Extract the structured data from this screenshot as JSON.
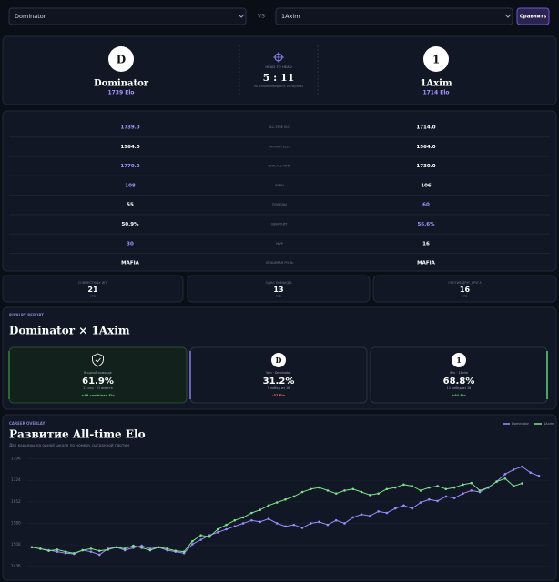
{
  "topbar": {
    "player1": "Dominator",
    "vs": "VS",
    "player2": "1Axim",
    "button": "Сравнить"
  },
  "h2h": {
    "left": {
      "avatar": "D",
      "name": "Dominator",
      "elo": "1739 Elo"
    },
    "right": {
      "avatar": "1",
      "name": "1Axim",
      "elo": "1714 Elo"
    },
    "label": "HEAD TO HEAD",
    "score": "5 : 11",
    "caption": "По очным победам в 16 партиях"
  },
  "stats": [
    {
      "left": "1739.0",
      "label": "ALL-TIME ELO",
      "right": "1714.0",
      "winner": "left"
    },
    {
      "left": "1564.0",
      "label": "MONTH ELO",
      "right": "1564.0",
      "winner": "none"
    },
    {
      "left": "1770.0",
      "label": "ПИК ALL-TIME",
      "right": "1730.0",
      "winner": "left"
    },
    {
      "left": "108",
      "label": "ИГРЫ",
      "right": "106",
      "winner": "left"
    },
    {
      "left": "55",
      "label": "ПОБЕДЫ",
      "right": "60",
      "winner": "right"
    },
    {
      "left": "50.9%",
      "label": "ВИНРЕЙТ",
      "right": "56.6%",
      "winner": "right"
    },
    {
      "left": "30",
      "label": "MVP",
      "right": "16",
      "winner": "left"
    },
    {
      "left": "MAFIA",
      "label": "ЛЮБИМАЯ РОЛЬ",
      "right": "MAFIA",
      "winner": "none"
    }
  ],
  "summary": [
    {
      "label": "СОВМЕСТНЫХ ИГР",
      "value": "21",
      "unit": "игр"
    },
    {
      "label": "ОДНА КОМАНДА",
      "value": "13",
      "unit": "игр"
    },
    {
      "label": "ПРОТИВ ДРУГ ДРУГА",
      "value": "16",
      "unit": "игр"
    }
  ],
  "rivalry": {
    "eyebrow": "RIVALRY REPORT",
    "title": "Dominator × 1Axim",
    "cards": [
      {
        "label": "В одной команде",
        "value": "61.9%",
        "sub": "13 игр · 21 вместе",
        "delta": "+46 combined Elo",
        "tone": "positive",
        "accent": "#3b7a4a"
      },
      {
        "avatar": "D",
        "label": "Win · Dominator",
        "value": "31.2%",
        "sub": "5 побед из 16",
        "delta": "-37 Elo",
        "tone": "negative",
        "accent": "#8b7cf0"
      },
      {
        "avatar": "1",
        "label": "Win · 1Axim",
        "value": "68.8%",
        "sub": "11 побед из 16",
        "delta": "+64 Elo",
        "tone": "positive",
        "accent": "#5fd37a"
      }
    ]
  },
  "chart_data": {
    "type": "line",
    "eyebrow": "CAREER OVERLAY",
    "title": "Развитие All-time Elo",
    "subtitle": "Две карьеры на одной шкале по номеру сыгранной партии",
    "legend": "top-right",
    "grid": true,
    "ylim": [
      1420,
      1810
    ],
    "yticks": [
      1796,
      1724,
      1652,
      1580,
      1508,
      1436
    ],
    "series": [
      {
        "name": "Dominator",
        "color": "#9d8cff",
        "values": [
          1500,
          1495,
          1490,
          1485,
          1480,
          1478,
          1490,
          1485,
          1475,
          1495,
          1500,
          1490,
          1498,
          1505,
          1495,
          1500,
          1490,
          1485,
          1480,
          1510,
          1525,
          1540,
          1550,
          1560,
          1570,
          1580,
          1590,
          1585,
          1595,
          1580,
          1570,
          1575,
          1565,
          1580,
          1585,
          1575,
          1590,
          1580,
          1600,
          1610,
          1605,
          1620,
          1615,
          1630,
          1640,
          1630,
          1650,
          1660,
          1655,
          1670,
          1665,
          1680,
          1690,
          1685,
          1700,
          1720,
          1745,
          1760,
          1770,
          1750,
          1739
        ]
      },
      {
        "name": "1Axim",
        "color": "#7ee08a",
        "values": [
          1500,
          1495,
          1488,
          1492,
          1485,
          1480,
          1490,
          1495,
          1488,
          1492,
          1500,
          1495,
          1505,
          1498,
          1490,
          1500,
          1495,
          1488,
          1485,
          1520,
          1540,
          1535,
          1560,
          1575,
          1590,
          1600,
          1615,
          1625,
          1640,
          1650,
          1660,
          1670,
          1685,
          1695,
          1700,
          1690,
          1680,
          1690,
          1695,
          1685,
          1675,
          1680,
          1695,
          1700,
          1710,
          1705,
          1690,
          1700,
          1705,
          1695,
          1700,
          1710,
          1715,
          1690,
          1700,
          1720,
          1730,
          1705,
          1714
        ]
      }
    ]
  }
}
